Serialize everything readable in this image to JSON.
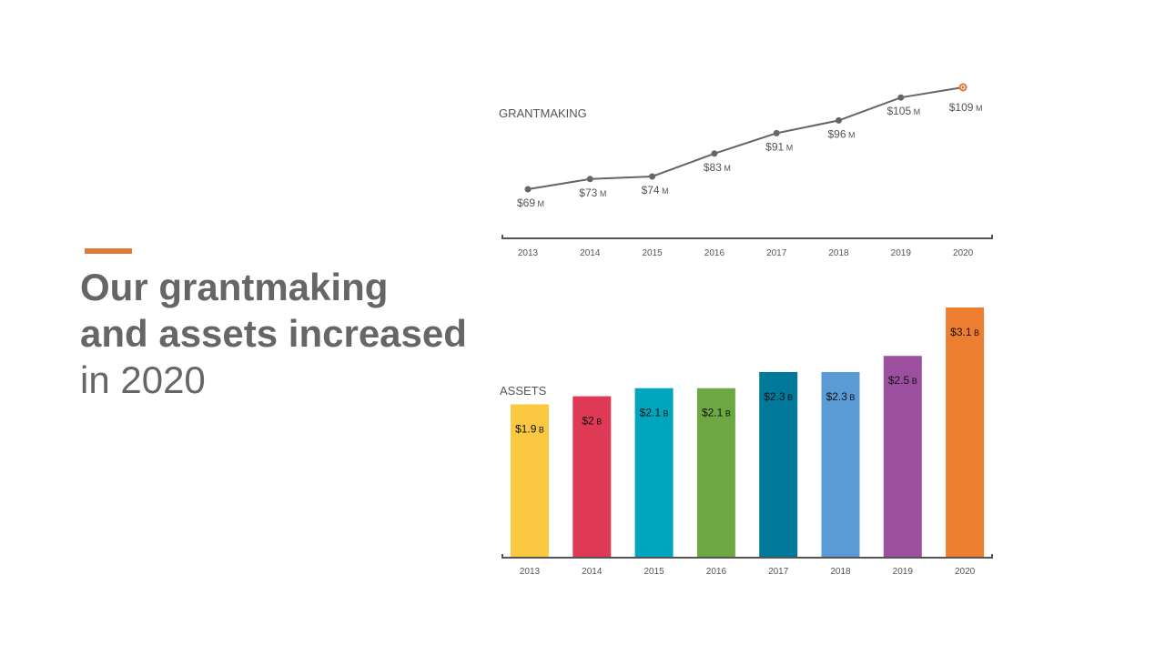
{
  "slide": {
    "accent_color": "#E07A38",
    "headline": {
      "line1": "Our grantmaking",
      "line2": "and assets increased",
      "line3": "in 2020"
    }
  },
  "chart_data": [
    {
      "type": "line",
      "title": "GRANTMAKING",
      "categories": [
        "2013",
        "2014",
        "2015",
        "2016",
        "2017",
        "2018",
        "2019",
        "2020"
      ],
      "values": [
        69,
        73,
        74,
        83,
        91,
        96,
        105,
        109
      ],
      "labels": [
        "$69",
        "$73",
        "$74",
        "$83",
        "$91",
        "$96",
        "$105",
        "$109"
      ],
      "unit_suffix": "M",
      "ylim": [
        60,
        112
      ],
      "line_color": "#666666",
      "highlight_color": "#E07A38",
      "grid": false
    },
    {
      "type": "bar",
      "title": "ASSETS",
      "categories": [
        "2013",
        "2014",
        "2015",
        "2016",
        "2017",
        "2018",
        "2019",
        "2020"
      ],
      "values": [
        1.9,
        2,
        2.1,
        2.1,
        2.3,
        2.3,
        2.5,
        3.1
      ],
      "labels": [
        "$1.9",
        "$2",
        "$2.1",
        "$2.1",
        "$2.3",
        "$2.3",
        "$2.5",
        "$3.1"
      ],
      "unit_suffix": "B",
      "colors": [
        "#FBC841",
        "#DE3A56",
        "#00A5BE",
        "#6DA843",
        "#00799A",
        "#5B9BD5",
        "#9C4F9E",
        "#ED7D31"
      ],
      "ylim": [
        0,
        3.2
      ],
      "grid": false
    }
  ]
}
